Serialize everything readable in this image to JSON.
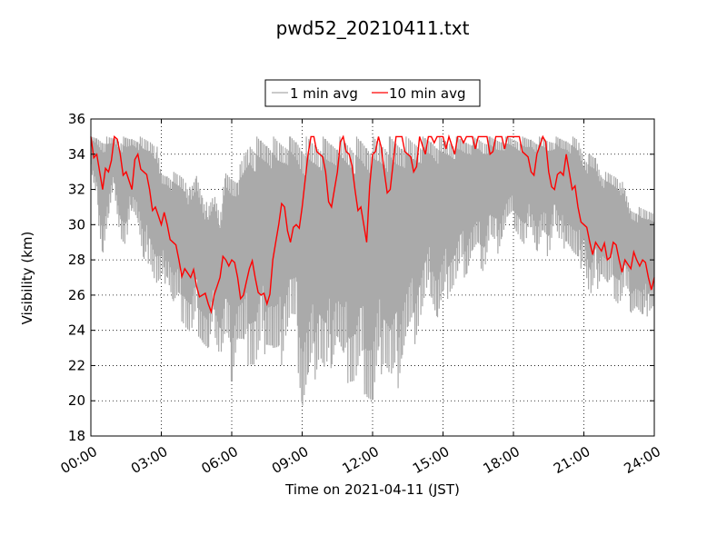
{
  "chart_data": {
    "type": "line",
    "title": "pwd52_20210411.txt",
    "xlabel": "Time on 2021-04-11 (JST)",
    "ylabel": "Visibility (km)",
    "xlim": [
      "00:00",
      "24:00"
    ],
    "ylim": [
      18,
      36
    ],
    "x_ticks": [
      "00:00",
      "03:00",
      "06:00",
      "09:00",
      "12:00",
      "15:00",
      "18:00",
      "21:00",
      "24:00"
    ],
    "y_ticks": [
      18,
      20,
      22,
      24,
      26,
      28,
      30,
      32,
      34,
      36
    ],
    "grid": true,
    "legend_position": "top-center, above plot",
    "x_units": "hours since 00:00",
    "series": [
      {
        "name": "1 min avg",
        "color": "#aaaaaa",
        "x": [
          0,
          0.25,
          0.5,
          0.75,
          1,
          1.25,
          1.5,
          1.75,
          2,
          2.25,
          2.5,
          2.75,
          3,
          3.25,
          3.5,
          3.75,
          4,
          4.25,
          4.5,
          4.75,
          5,
          5.25,
          5.5,
          5.75,
          6,
          6.25,
          6.5,
          6.75,
          7,
          7.25,
          7.5,
          7.75,
          8,
          8.25,
          8.5,
          8.75,
          9,
          9.25,
          9.5,
          9.75,
          10,
          10.25,
          10.5,
          10.75,
          11,
          11.25,
          11.5,
          11.75,
          12,
          12.25,
          12.5,
          12.75,
          13,
          13.25,
          13.5,
          13.75,
          14,
          14.25,
          14.5,
          14.75,
          15,
          15.25,
          15.5,
          15.75,
          16,
          16.25,
          16.5,
          16.75,
          17,
          17.25,
          17.5,
          17.75,
          18,
          18.25,
          18.5,
          18.75,
          19,
          19.25,
          19.5,
          19.75,
          20,
          20.25,
          20.5,
          20.75,
          21,
          21.25,
          21.5,
          21.75,
          22,
          22.25,
          22.5,
          22.75,
          23,
          23.25,
          23.5,
          23.75,
          24
        ],
        "low": [
          33,
          31,
          28,
          30,
          32,
          29,
          28,
          31,
          30,
          27,
          28,
          26,
          26,
          27,
          25,
          25,
          24,
          23,
          24,
          23,
          22,
          24,
          22,
          23,
          21,
          23,
          22,
          22,
          21,
          22,
          23,
          22,
          21,
          23,
          24,
          23,
          19,
          20,
          21,
          22,
          20,
          22,
          23,
          21,
          21,
          20,
          21,
          20,
          18.6,
          21,
          22,
          20,
          20,
          22,
          23,
          23,
          24,
          25,
          26,
          24,
          25,
          26,
          26,
          27,
          27,
          28,
          28,
          27,
          29,
          28,
          29,
          30,
          30,
          29,
          28,
          30,
          28,
          29,
          28,
          30,
          28,
          29,
          28,
          27,
          28,
          25,
          26,
          27,
          26,
          26,
          25,
          26,
          25,
          25,
          24,
          25,
          25
        ],
        "high": [
          35,
          35,
          35,
          35,
          35,
          35,
          35,
          35,
          35,
          35,
          35,
          35,
          33,
          33,
          33,
          33,
          33,
          32,
          33,
          32,
          31,
          32,
          31,
          33,
          33,
          33,
          34,
          35,
          35,
          35,
          35,
          35,
          35,
          35,
          35,
          35,
          35,
          35,
          35,
          35,
          35,
          35,
          35,
          35,
          35,
          35,
          35,
          35,
          35,
          35,
          35,
          35,
          35,
          35,
          35,
          35,
          35,
          35,
          35,
          35,
          35,
          35,
          35,
          35,
          35,
          35,
          35,
          35,
          35,
          35,
          35,
          35,
          35,
          35,
          35,
          35,
          35,
          35,
          35,
          35,
          35,
          35,
          35,
          35,
          34,
          34,
          34,
          33,
          33,
          33,
          33,
          32,
          31,
          31,
          31,
          31,
          31
        ]
      },
      {
        "name": "10 min avg",
        "color": "#ff0000",
        "x": [
          0,
          0.25,
          0.5,
          0.75,
          1,
          1.25,
          1.5,
          1.75,
          2,
          2.25,
          2.5,
          2.75,
          3,
          3.25,
          3.5,
          3.75,
          4,
          4.25,
          4.5,
          4.75,
          5,
          5.25,
          5.5,
          5.75,
          6,
          6.25,
          6.5,
          6.75,
          7,
          7.25,
          7.5,
          7.75,
          8,
          8.25,
          8.5,
          8.75,
          9,
          9.25,
          9.5,
          9.75,
          10,
          10.25,
          10.5,
          10.75,
          11,
          11.25,
          11.5,
          11.75,
          12,
          12.25,
          12.5,
          12.75,
          13,
          13.25,
          13.5,
          13.75,
          14,
          14.25,
          14.5,
          14.75,
          15,
          15.25,
          15.5,
          15.75,
          16,
          16.25,
          16.5,
          16.75,
          17,
          17.25,
          17.5,
          17.75,
          18,
          18.25,
          18.5,
          18.75,
          19,
          19.25,
          19.5,
          19.75,
          20,
          20.25,
          20.5,
          20.75,
          21,
          21.25,
          21.5,
          21.75,
          22,
          22.25,
          22.5,
          22.75,
          23,
          23.25,
          23.5,
          23.75,
          24
        ],
        "y": [
          35,
          34,
          32,
          33,
          35,
          34,
          33,
          32,
          34,
          33,
          32,
          31,
          30,
          30,
          29,
          28,
          27.5,
          27,
          26.5,
          26,
          25.5,
          26,
          27,
          28,
          28,
          27,
          26,
          27.5,
          27,
          26,
          25.5,
          28,
          30,
          31,
          29,
          30,
          31,
          34,
          35,
          34,
          33,
          31,
          33,
          35,
          34,
          32,
          31,
          29,
          34,
          35,
          33,
          32,
          35,
          35,
          34,
          33,
          35,
          34,
          35,
          35,
          35,
          35,
          34,
          35,
          35,
          35,
          35,
          35,
          34,
          35,
          35,
          35,
          35,
          35,
          34,
          33,
          34,
          35,
          33,
          32,
          33,
          34,
          32,
          31,
          30,
          29,
          29,
          28.5,
          28,
          29,
          28,
          28,
          27.5,
          28,
          28,
          27,
          27
        ]
      }
    ]
  }
}
